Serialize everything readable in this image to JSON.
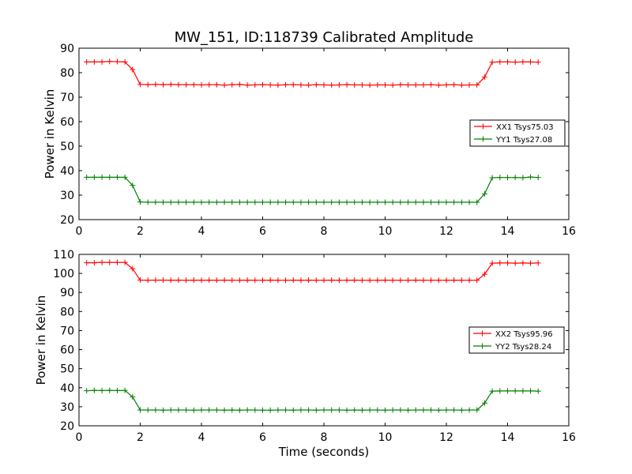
{
  "figure": {
    "title": "MW_151, ID:118739 Calibrated Amplitude"
  },
  "colors": {
    "xx": "#ff0000",
    "yy": "#008000"
  },
  "chart_data": [
    {
      "type": "line",
      "xlabel": "",
      "ylabel": "Power in Kelvin",
      "xlim": [
        0,
        16
      ],
      "ylim": [
        20,
        90
      ],
      "xticks": [
        0,
        2,
        4,
        6,
        8,
        10,
        12,
        14,
        16
      ],
      "yticks": [
        20,
        30,
        40,
        50,
        60,
        70,
        80,
        90
      ],
      "grid": false,
      "legend_position": "center-right",
      "x": [
        0.25,
        0.5,
        0.75,
        1.0,
        1.25,
        1.5,
        1.75,
        2.0,
        2.25,
        2.5,
        2.75,
        3.0,
        3.25,
        3.5,
        3.75,
        4.0,
        4.25,
        4.5,
        4.75,
        5.0,
        5.25,
        5.5,
        5.75,
        6.0,
        6.25,
        6.5,
        6.75,
        7.0,
        7.25,
        7.5,
        7.75,
        8.0,
        8.25,
        8.5,
        8.75,
        9.0,
        9.25,
        9.5,
        9.75,
        10.0,
        10.25,
        10.5,
        10.75,
        11.0,
        11.25,
        11.5,
        11.75,
        12.0,
        12.25,
        12.5,
        12.75,
        13.0,
        13.25,
        13.5,
        13.75,
        14.0,
        14.25,
        14.5,
        14.75,
        15.0
      ],
      "series": [
        {
          "name": "XX1 Tsys75.03",
          "color": "#ff0000",
          "values": [
            84.4,
            84.4,
            84.4,
            84.6,
            84.5,
            84.4,
            81.3,
            75.2,
            75.1,
            75.2,
            75.1,
            75.2,
            75.1,
            75.1,
            75.1,
            75.0,
            75.1,
            75.1,
            74.9,
            75.1,
            75.2,
            74.9,
            75.0,
            75.1,
            75.0,
            74.9,
            75.1,
            75.1,
            75.0,
            74.9,
            75.1,
            75.0,
            74.9,
            75.0,
            75.1,
            75.0,
            75.0,
            74.9,
            75.0,
            75.0,
            74.9,
            75.1,
            75.0,
            75.0,
            75.0,
            75.1,
            74.9,
            75.0,
            75.1,
            74.9,
            75.0,
            75.0,
            78.2,
            84.3,
            84.4,
            84.4,
            84.3,
            84.4,
            84.4,
            84.3
          ]
        },
        {
          "name": "YY1 Tsys27.08",
          "color": "#008000",
          "values": [
            37.3,
            37.3,
            37.3,
            37.3,
            37.3,
            37.3,
            34.0,
            27.2,
            27.1,
            27.1,
            27.1,
            27.1,
            27.1,
            27.1,
            27.1,
            27.1,
            27.1,
            27.1,
            27.1,
            27.1,
            27.1,
            27.1,
            27.1,
            27.1,
            27.1,
            27.1,
            27.1,
            27.1,
            27.1,
            27.1,
            27.1,
            27.1,
            27.1,
            27.1,
            27.1,
            27.1,
            27.1,
            27.1,
            27.1,
            27.1,
            27.1,
            27.1,
            27.1,
            27.1,
            27.1,
            27.1,
            27.1,
            27.1,
            27.1,
            27.1,
            27.1,
            27.1,
            30.5,
            37.1,
            37.2,
            37.2,
            37.2,
            37.1,
            37.4,
            37.2
          ]
        }
      ]
    },
    {
      "type": "line",
      "xlabel": "Time (seconds)",
      "ylabel": "Power in Kelvin",
      "xlim": [
        0,
        16
      ],
      "ylim": [
        20,
        110
      ],
      "xticks": [
        0,
        2,
        4,
        6,
        8,
        10,
        12,
        14,
        16
      ],
      "yticks": [
        20,
        30,
        40,
        50,
        60,
        70,
        80,
        90,
        100,
        110
      ],
      "grid": false,
      "legend_position": "center-right",
      "x": [
        0.25,
        0.5,
        0.75,
        1.0,
        1.25,
        1.5,
        1.75,
        2.0,
        2.25,
        2.5,
        2.75,
        3.0,
        3.25,
        3.5,
        3.75,
        4.0,
        4.25,
        4.5,
        4.75,
        5.0,
        5.25,
        5.5,
        5.75,
        6.0,
        6.25,
        6.5,
        6.75,
        7.0,
        7.25,
        7.5,
        7.75,
        8.0,
        8.25,
        8.5,
        8.75,
        9.0,
        9.25,
        9.5,
        9.75,
        10.0,
        10.25,
        10.5,
        10.75,
        11.0,
        11.25,
        11.5,
        11.75,
        12.0,
        12.25,
        12.5,
        12.75,
        13.0,
        13.25,
        13.5,
        13.75,
        14.0,
        14.25,
        14.5,
        14.75,
        15.0
      ],
      "series": [
        {
          "name": "XX2 Tsys95.96",
          "color": "#ff0000",
          "values": [
            105.6,
            105.6,
            105.8,
            105.8,
            105.8,
            105.8,
            102.5,
            96.5,
            96.4,
            96.5,
            96.5,
            96.4,
            96.5,
            96.4,
            96.5,
            96.4,
            96.5,
            96.4,
            96.5,
            96.4,
            96.4,
            96.5,
            96.4,
            96.4,
            96.5,
            96.4,
            96.4,
            96.5,
            96.4,
            96.5,
            96.4,
            96.4,
            96.5,
            96.4,
            96.4,
            96.5,
            96.4,
            96.4,
            96.4,
            96.5,
            96.4,
            96.4,
            96.4,
            96.5,
            96.4,
            96.4,
            96.4,
            96.4,
            96.5,
            96.4,
            96.4,
            96.4,
            99.6,
            105.4,
            105.5,
            105.5,
            105.4,
            105.5,
            105.4,
            105.5
          ]
        },
        {
          "name": "YY2 Tsys28.24",
          "color": "#008000",
          "values": [
            38.4,
            38.6,
            38.5,
            38.6,
            38.5,
            38.6,
            35.2,
            28.3,
            28.3,
            28.3,
            28.2,
            28.3,
            28.3,
            28.3,
            28.2,
            28.3,
            28.3,
            28.3,
            28.2,
            28.3,
            28.2,
            28.3,
            28.3,
            28.2,
            28.2,
            28.3,
            28.3,
            28.2,
            28.3,
            28.3,
            28.2,
            28.3,
            28.3,
            28.3,
            28.2,
            28.3,
            28.2,
            28.3,
            28.3,
            28.2,
            28.3,
            28.3,
            28.2,
            28.3,
            28.3,
            28.3,
            28.2,
            28.3,
            28.3,
            28.2,
            28.3,
            28.3,
            31.9,
            38.2,
            38.3,
            38.3,
            38.3,
            38.3,
            38.3,
            38.2
          ]
        }
      ]
    }
  ]
}
